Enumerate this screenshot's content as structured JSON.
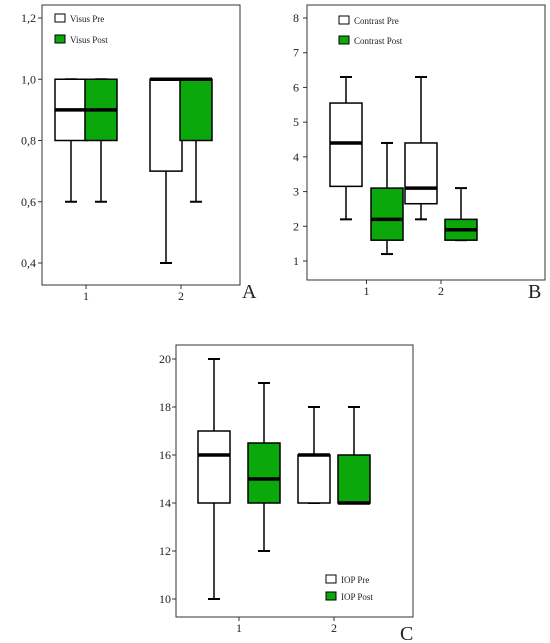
{
  "colors": {
    "pre": "#ffffff",
    "post": "#0aa80a",
    "stroke": "#000000"
  },
  "chart_data": [
    {
      "type": "boxplot",
      "panel_label": "A",
      "categories": [
        "1",
        "2"
      ],
      "y_ticks": [
        "0,4",
        "0,6",
        "0,8",
        "1,0",
        "1,2"
      ],
      "ylim": [
        0.35,
        1.25
      ],
      "legend": [
        "Visus Pre",
        "Visus Post"
      ],
      "legend_position": "top-left",
      "series": [
        {
          "name": "Visus Pre",
          "boxes": [
            {
              "min": 0.6,
              "q1": 0.8,
              "median": 0.9,
              "q3": 1.0,
              "max": 1.0
            },
            {
              "min": 0.4,
              "q1": 0.7,
              "median": 1.0,
              "q3": 1.0,
              "max": 1.0
            }
          ]
        },
        {
          "name": "Visus Post",
          "boxes": [
            {
              "min": 0.6,
              "q1": 0.8,
              "median": 0.9,
              "q3": 1.0,
              "max": 1.0
            },
            {
              "min": 0.6,
              "q1": 0.8,
              "median": 1.0,
              "q3": 1.0,
              "max": 1.0
            }
          ]
        }
      ]
    },
    {
      "type": "boxplot",
      "panel_label": "B",
      "categories": [
        "1",
        "2"
      ],
      "y_ticks": [
        "1",
        "2",
        "3",
        "4",
        "5",
        "6",
        "7",
        "8"
      ],
      "ylim": [
        0.5,
        8.3
      ],
      "legend": [
        "Contrast Pre",
        "Contrast Post"
      ],
      "legend_position": "top-left",
      "series": [
        {
          "name": "Contrast Pre",
          "boxes": [
            {
              "min": 2.2,
              "q1": 3.15,
              "median": 4.4,
              "q3": 5.55,
              "max": 6.3
            },
            {
              "min": 2.2,
              "q1": 2.65,
              "median": 3.1,
              "q3": 4.4,
              "max": 6.3
            }
          ]
        },
        {
          "name": "Contrast Post",
          "boxes": [
            {
              "min": 1.2,
              "q1": 1.6,
              "median": 2.2,
              "q3": 3.1,
              "max": 4.4
            },
            {
              "min": 1.6,
              "q1": 1.6,
              "median": 1.9,
              "q3": 2.2,
              "max": 3.1
            }
          ]
        }
      ]
    },
    {
      "type": "boxplot",
      "panel_label": "C",
      "categories": [
        "1",
        "2"
      ],
      "y_ticks": [
        "10",
        "12",
        "14",
        "16",
        "18",
        "20"
      ],
      "ylim": [
        9.4,
        20.4
      ],
      "legend": [
        "IOP Pre",
        "IOP Post"
      ],
      "legend_position": "bottom-right",
      "series": [
        {
          "name": "IOP Pre",
          "boxes": [
            {
              "min": 10,
              "q1": 14,
              "median": 16,
              "q3": 17,
              "max": 20
            },
            {
              "min": 14,
              "q1": 14,
              "median": 16,
              "q3": 16,
              "max": 18
            }
          ]
        },
        {
          "name": "IOP Post",
          "boxes": [
            {
              "min": 12,
              "q1": 14,
              "median": 15,
              "q3": 16.5,
              "max": 19
            },
            {
              "min": 14,
              "q1": 14,
              "median": 14,
              "q3": 16,
              "max": 18
            }
          ]
        }
      ]
    }
  ]
}
